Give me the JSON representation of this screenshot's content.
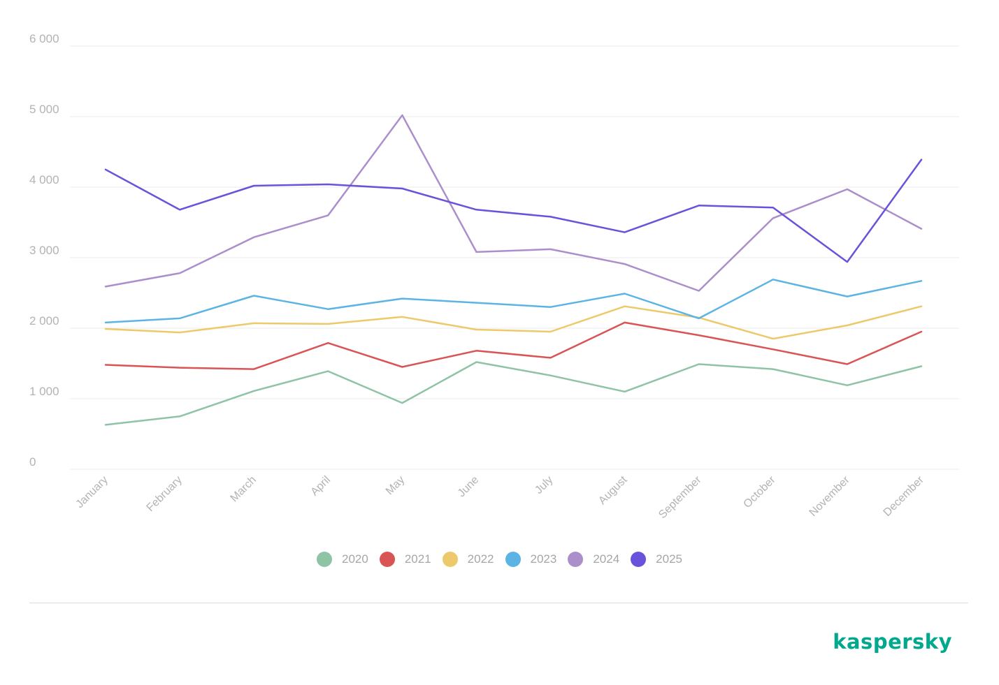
{
  "brand": {
    "logo_text": "kaspersky",
    "color": "#00a88e"
  },
  "chart_data": {
    "type": "line",
    "title": "",
    "xlabel": "",
    "ylabel": "",
    "ylim": [
      0,
      6000
    ],
    "y_ticks": [
      0,
      1000,
      2000,
      3000,
      4000,
      5000,
      6000
    ],
    "y_tick_labels": [
      "0",
      "1 000",
      "2 000",
      "3 000",
      "4 000",
      "5 000",
      "6 000"
    ],
    "categories": [
      "January",
      "February",
      "March",
      "April",
      "May",
      "June",
      "July",
      "August",
      "September",
      "October",
      "November",
      "December"
    ],
    "grid": true,
    "legend_position": "bottom",
    "series": [
      {
        "name": "2020",
        "color": "#8fc3a5",
        "values": [
          630,
          750,
          1110,
          1390,
          940,
          1520,
          1330,
          1100,
          1490,
          1420,
          1190,
          1460
        ]
      },
      {
        "name": "2021",
        "color": "#d95455",
        "values": [
          1480,
          1440,
          1420,
          1790,
          1450,
          1680,
          1580,
          2080,
          1900,
          1700,
          1490,
          1950
        ]
      },
      {
        "name": "2022",
        "color": "#ecc96a",
        "values": [
          1990,
          1940,
          2070,
          2060,
          2160,
          1980,
          1950,
          2310,
          2150,
          1850,
          2040,
          2310
        ]
      },
      {
        "name": "2023",
        "color": "#5cb4e4",
        "values": [
          2080,
          2140,
          2460,
          2270,
          2420,
          2360,
          2300,
          2490,
          2140,
          2690,
          2450,
          2670
        ]
      },
      {
        "name": "2024",
        "color": "#ab8fcb",
        "values": [
          2590,
          2780,
          3290,
          3600,
          5020,
          3080,
          3120,
          2910,
          2530,
          3560,
          3970,
          3410
        ]
      },
      {
        "name": "2025",
        "color": "#6a52db",
        "values": [
          4250,
          3680,
          4020,
          4040,
          3980,
          3680,
          3580,
          3360,
          3740,
          3710,
          2940,
          4390
        ]
      }
    ]
  }
}
